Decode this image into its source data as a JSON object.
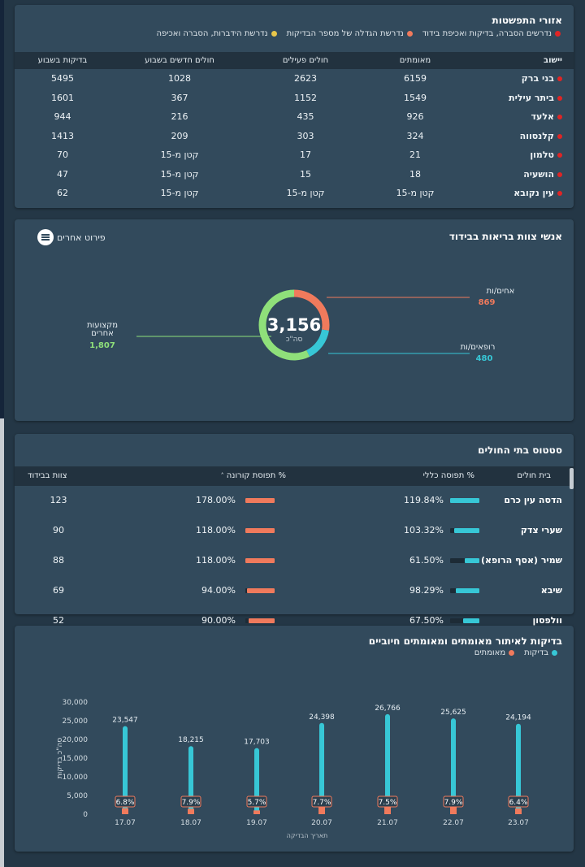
{
  "spread": {
    "title": "אזורי התפשטות",
    "legend": [
      {
        "label": "נדרשים הסברה, בדיקות ואכיפת בידוד",
        "color": "#e02525"
      },
      {
        "label": "נדרשת הגדלה של מספר הבדיקות",
        "color": "#f07a5c"
      },
      {
        "label": "נדרשת הידברות, הסברה ואכיפה",
        "color": "#e8c64a"
      }
    ],
    "columns": [
      "יישוב",
      "מאומתים",
      "חולים פעילים",
      "חולים חדשים בשבוע",
      "בדיקות בשבוע"
    ],
    "rows": [
      [
        "בני ברק",
        "6159",
        "2623",
        "1028",
        "5495"
      ],
      [
        "ביתר עילית",
        "1549",
        "1152",
        "367",
        "1601"
      ],
      [
        "אלעד",
        "926",
        "435",
        "216",
        "944"
      ],
      [
        "קלנסווה",
        "324",
        "303",
        "209",
        "1413"
      ],
      [
        "טלמון",
        "21",
        "17",
        "קטן מ-15",
        "70"
      ],
      [
        "הושעיה",
        "18",
        "15",
        "קטן מ-15",
        "47"
      ],
      [
        "עין נקובא",
        "קטן מ-15",
        "קטן מ-15",
        "קטן מ-15",
        "62"
      ]
    ]
  },
  "staff": {
    "title": "אנשי צוות בריאות בבידוד",
    "menu_label": "פירוט אחרים",
    "total": "3,156",
    "total_label": "סה\"כ",
    "colors": {
      "nurses": "#f07a5c",
      "doctors": "#37c7d6",
      "others": "#8fe07a"
    },
    "nurses": {
      "label": "אחים/ות",
      "value": "869",
      "count": 869
    },
    "doctors": {
      "label": "רופאים/ות",
      "value": "480",
      "count": 480
    },
    "others": {
      "label_line1": "מקצועות",
      "label_line2": "אחרים",
      "value": "1,807",
      "count": 1807
    }
  },
  "hospitals": {
    "title": "סטטוס בתי החולים",
    "columns": {
      "name": "בית חולים",
      "occupancy": "% תפוסה כללי",
      "corona": "% תפוסת קורונה",
      "isolation": "צוות בבידוד"
    },
    "sort_icon": "caret-up-icon",
    "rows": [
      {
        "name": "הדסה עין כרם",
        "occupancy": "119.84%",
        "occ": 119.84,
        "corona": "178.00%",
        "cor": 178.0,
        "isolation": "123"
      },
      {
        "name": "שערי צדק",
        "occupancy": "103.32%",
        "occ": 103.32,
        "corona": "118.00%",
        "cor": 118.0,
        "isolation": "90"
      },
      {
        "name": "שמיר (אסף הרופא)",
        "occupancy": "61.50%",
        "occ": 61.5,
        "corona": "118.00%",
        "cor": 118.0,
        "isolation": "88"
      },
      {
        "name": "שיבא",
        "occupancy": "98.29%",
        "occ": 98.29,
        "corona": "94.00%",
        "cor": 94.0,
        "isolation": "69"
      },
      {
        "name": "וולפסון",
        "occupancy": "67.50%",
        "occ": 67.5,
        "corona": "90.00%",
        "cor": 90.0,
        "isolation": "52"
      }
    ]
  },
  "tests": {
    "title": "בדיקות לאיתור מאומתים ומאומתים חיוביים",
    "legend": [
      {
        "label": "בדיקות",
        "color": "#37c7d6"
      },
      {
        "label": "מאומתים",
        "color": "#f07a5c"
      }
    ]
  },
  "chart_data": {
    "type": "bar",
    "title": "בדיקות לאיתור מאומתים ומאומתים חיוביים",
    "xlabel": "תאריך הבדיקה",
    "ylabel": "סה\"כ בדיקות",
    "ylim": [
      0,
      30000
    ],
    "yticks": [
      "0",
      "5,000",
      "10,000",
      "15,000",
      "20,000",
      "25,000",
      "30,000"
    ],
    "categories": [
      "17.07",
      "18.07",
      "19.07",
      "20.07",
      "21.07",
      "22.07",
      "23.07"
    ],
    "series": [
      {
        "name": "בדיקות",
        "values": [
          23547,
          18215,
          17703,
          24398,
          26766,
          25625,
          24194
        ],
        "labels": [
          "23,547",
          "18,215",
          "17,703",
          "24,398",
          "26,766",
          "25,625",
          "24,194"
        ]
      },
      {
        "name": "מאומתים",
        "values": [
          1601,
          1439,
          1009,
          1879,
          2007,
          2024,
          1548
        ],
        "labels": [
          "6.8%",
          "7.9%",
          "5.7%",
          "7.7%",
          "7.5%",
          "7.9%",
          "6.4%"
        ]
      }
    ]
  }
}
